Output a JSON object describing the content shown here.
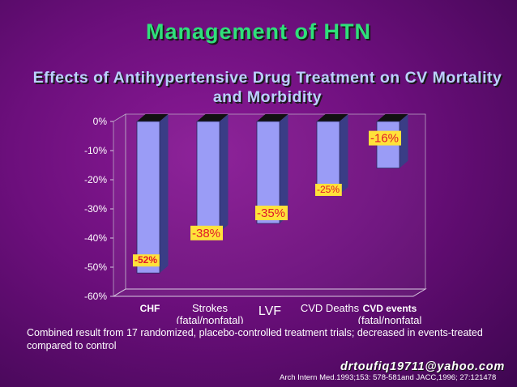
{
  "title": "Management of HTN",
  "subtitle": "Effects of Antihypertensive Drug Treatment on CV Mortality and Morbidity",
  "footnote": "Combined result from 17 randomized, placebo-controlled treatment trials; decreased in events-treated compared to control",
  "email": "drtoufiq19711@yahoo.com",
  "citation": "Arch Intern Med.1993;153: 578-581and JACC,1996; 27:121478",
  "colors": {
    "background": "#6c0f7c",
    "title": "#2fe07a",
    "subtitle": "#bcd0ff",
    "bar_front": "#9a9cf6",
    "bar_side": "#3a3d86",
    "bar_top": "#111111",
    "label_box": "#ffe23a",
    "label_text": "#e0182a"
  },
  "chart_data": {
    "type": "bar",
    "categories": [
      "CHF",
      "Strokes\n(fatal/nonfatal)",
      "LVF",
      "CVD Deaths",
      "CVD events\n(fatal/nonfatal"
    ],
    "values": [
      -52,
      -38,
      -35,
      -25,
      -16
    ],
    "data_labels": [
      "-52%",
      "-38%",
      "-35%",
      "-25%",
      "-16%"
    ],
    "yticks": [
      "0%",
      "-10%",
      "-20%",
      "-30%",
      "-40%",
      "-50%",
      "-60%"
    ],
    "ylim": [
      -60,
      0
    ],
    "grid": false,
    "legend": "none",
    "three_d": true
  }
}
